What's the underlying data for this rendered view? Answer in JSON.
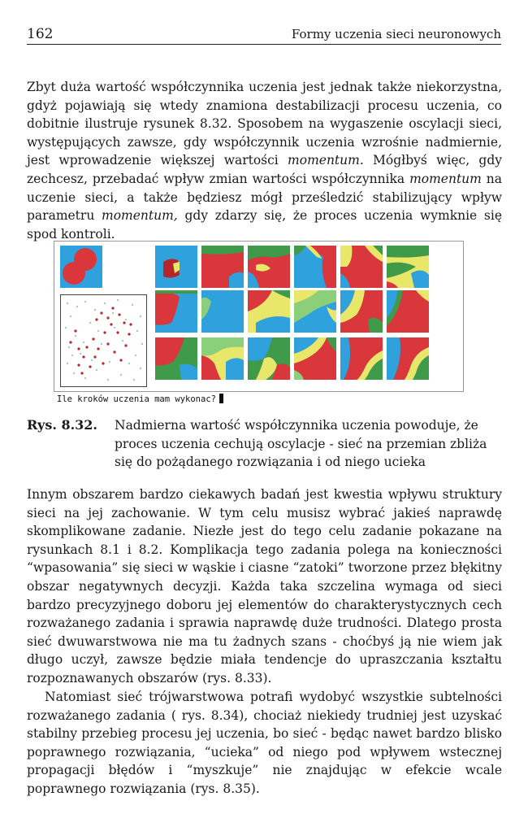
{
  "header": {
    "page_number": "162",
    "running_title": "Formy uczenia sieci neuronowych"
  },
  "paragraph1": {
    "t1": "Zbyt duża wartość współczynnika uczenia jest jednak także niekorzystna, gdyż pojawiają się wtedy znamiona destabilizacji procesu uczenia, co dobitnie ilustruje rysunek 8.32. Sposobem na wygaszenie oscylacji sieci, występujących zawsze, gdy współczynnik uczenia wzrośnie nadmiernie, jest wprowadzenie większej wartości ",
    "em1": "momentum.",
    "t2": " Mógłbyś więc, gdy zechcesz, przebadać wpływ zmian wartości współczynnika ",
    "em2": "momentum",
    "t3": " na uczenie sieci, a także będziesz mógł prześledzić stabilizujący wpływ parametru ",
    "em3": "momentum,",
    "t4": " gdy zdarzy się, że proces uczenia wymknie się spod kontroli."
  },
  "figure": {
    "prompt": "Ile kroków uczenia mam wykonac?"
  },
  "caption": {
    "label": "Rys. 8.32.",
    "text": "Nadmierna wartość współczynnika uczenia powoduje, że proces uczenia cechują oscylacje - sieć na przemian zbliża się do pożądanego rozwiązania i od niego ucieka"
  },
  "paragraph2": "Innym obszarem bardzo ciekawych badań jest kwestia wpływu struktury sieci na jej zachowanie. W tym celu musisz wybrać jakieś naprawdę skomplikowane zadanie. Niezłe jest do tego celu zadanie pokazane na rysunkach 8.1 i 8.2. Komplikacja tego zadania polega na konieczności “wpasowania” się sieci w wąskie i ciasne “zatoki” tworzone przez błękitny obszar negatywnych decyzji. Każda taka szczelina wymaga od sieci bardzo precyzyjnego doboru jej elementów do charakterystycznych cech rozważanego zadania i sprawia naprawdę duże trudności. Dlatego prosta sieć dwuwarstwowa nie ma tu żadnych szans - choćbyś ją nie wiem jak długo uczył, zawsze będzie miała tendencje do upraszczania kształtu rozpoznawanych obszarów (rys. 8.33).",
  "paragraph3": "Natomiast sieć trójwarstwowa potrafi wydobyć wszystkie subtelności rozważanego zadania ( rys. 8.34), chociaż niekiedy trudniej jest uzyskać stabilny przebieg procesu jej uczenia, bo sieć - będąc nawet bardzo blisko poprawnego rozwiązania, “ucieka” od niego pod wpływem wstecznej propagacji błędów i “myszkuje” nie znajdując w efekcie wcale poprawnego rozwiązania (rys. 8.35).",
  "colors": {
    "red": "#d9373b",
    "darkred": "#b5262a",
    "blue": "#2fa1dc",
    "green": "#3f9a4a",
    "yellow": "#e9e76a",
    "lightgreen": "#8ccf7a"
  }
}
